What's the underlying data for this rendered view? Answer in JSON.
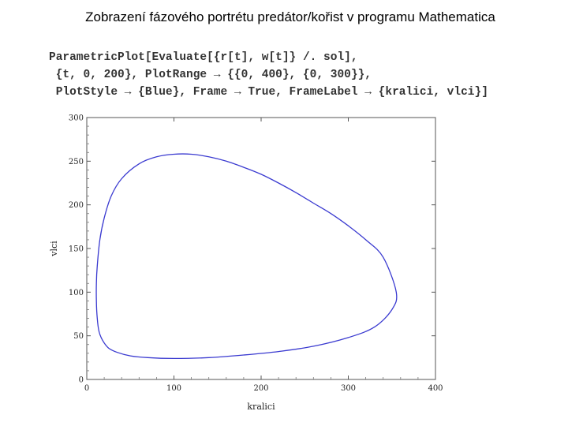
{
  "slide": {
    "title": "Zobrazení fázového portrétu predátor/kořist v programu Mathematica"
  },
  "code": {
    "lines": [
      "ParametricPlot[Evaluate[{r[t], w[t]} /. sol],",
      " {t, 0, 200}, PlotRange → {{0, 400}, {0, 300}},",
      " PlotStyle → {Blue}, Frame → True, FrameLabel → {kralici, vlci}]"
    ]
  },
  "chart_data": {
    "type": "line",
    "title": "",
    "xlabel": "kralici",
    "ylabel": "vlci",
    "xlim": [
      0,
      400
    ],
    "ylim": [
      0,
      300
    ],
    "xticks": [
      0,
      100,
      200,
      300,
      400
    ],
    "yticks": [
      0,
      50,
      100,
      150,
      200,
      250,
      300
    ],
    "grid": false,
    "series": [
      {
        "color": "#3a3ad0",
        "closed": true,
        "x": [
          355,
          340,
          320,
          300,
          280,
          260,
          240,
          220,
          200,
          180,
          160,
          140,
          120,
          100,
          80,
          60,
          40,
          28,
          20,
          15,
          12,
          11,
          11,
          12,
          14,
          18,
          25,
          35,
          50,
          70,
          100,
          140,
          180,
          220,
          260,
          300,
          330,
          350,
          355
        ],
        "y": [
          100,
          140,
          160,
          176,
          190,
          202,
          214,
          225,
          235,
          243,
          250,
          255,
          258,
          258,
          255,
          247,
          230,
          210,
          185,
          160,
          130,
          110,
          90,
          70,
          55,
          45,
          36,
          31,
          27,
          25,
          24,
          25,
          28,
          32,
          38,
          48,
          60,
          80,
          100
        ]
      }
    ]
  }
}
